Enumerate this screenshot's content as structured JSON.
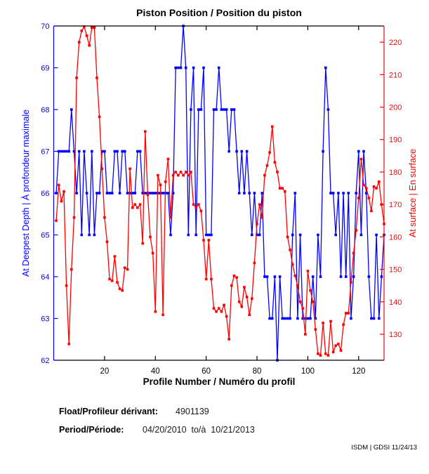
{
  "title": "Piston Position / Position du piston",
  "footer": {
    "float_label": "Float/Profileur dérivant:",
    "float_value": "4901139",
    "period_label": "Period/Période:",
    "period_value": "04/20/2010  to/à  10/21/2013",
    "credit": "ISDM | GDSI 11/24/13"
  },
  "colors": {
    "deep_blue": "#0000ff",
    "surface_red": "#ff0000",
    "axis_black": "#000000"
  },
  "chart_data": {
    "type": "line",
    "title": "Piston Position / Position du piston",
    "xlabel": "Profile Number / Numéro du profil",
    "ylabel_left": "At Deepest Depth | À profondeur maximale",
    "ylabel_right": "At surface | En surface",
    "xlim": [
      0,
      130
    ],
    "ylim_left": [
      62,
      70
    ],
    "ylim_right": [
      122,
      225
    ],
    "xticks": [
      20,
      40,
      60,
      80,
      100,
      120
    ],
    "yticks_left": [
      62,
      63,
      64,
      65,
      66,
      67,
      68,
      69,
      70
    ],
    "yticks_right": [
      130,
      140,
      150,
      160,
      170,
      180,
      190,
      200,
      210,
      220
    ],
    "x_range": [
      1,
      130
    ],
    "grid": false,
    "legend": "none",
    "marker": "square",
    "series": [
      {
        "name": "At Deepest Depth | À profondeur maximale",
        "axis": "left",
        "color": "#0000ff",
        "values": [
          66,
          67,
          67,
          67,
          67,
          67,
          68,
          67,
          66,
          67,
          65,
          67,
          66,
          65,
          67,
          65,
          66,
          66,
          67,
          67,
          66,
          66,
          66,
          67,
          67,
          66,
          67,
          67,
          66,
          66,
          66,
          66,
          67,
          67,
          66,
          66,
          66,
          66,
          66,
          66,
          66,
          66,
          66,
          66,
          66,
          65,
          66,
          69,
          69,
          69,
          70,
          69,
          65,
          68,
          69,
          65,
          68,
          68,
          69,
          65,
          65,
          65,
          68,
          68,
          69,
          68,
          68,
          68,
          67,
          68,
          68,
          67,
          66,
          67,
          66,
          67,
          66,
          65,
          66,
          65,
          65,
          66,
          64,
          64,
          63,
          63,
          64,
          62,
          64,
          63,
          63,
          63,
          63,
          65,
          66,
          63,
          65,
          63,
          63,
          63,
          63,
          64,
          63,
          65,
          64,
          67,
          69,
          68,
          66,
          66,
          65,
          66,
          64,
          66,
          64,
          66,
          63,
          64,
          66,
          67,
          65,
          67,
          66,
          64,
          63,
          63,
          65,
          63,
          64,
          65
        ]
      },
      {
        "name": "At surface | En surface",
        "axis": "right",
        "color": "#ff0000",
        "values": [
          165,
          176,
          171,
          174,
          145,
          127,
          150,
          166,
          209,
          220,
          223.5,
          224.8,
          222,
          219,
          224.5,
          224.5,
          209,
          197,
          181,
          166,
          158.5,
          147,
          146.5,
          154,
          146,
          144,
          143.5,
          150.5,
          150,
          181,
          169,
          170,
          169,
          170,
          158,
          192.5,
          173,
          160,
          155,
          137,
          179,
          176,
          136,
          177,
          184,
          166,
          179,
          180,
          179,
          180,
          179,
          180,
          179,
          180,
          170,
          169,
          170,
          168,
          159,
          147,
          159,
          147,
          138,
          137,
          138,
          137,
          139,
          135.5,
          128.5,
          145,
          148,
          147.5,
          140,
          138.5,
          144.5,
          141.5,
          136,
          141,
          152,
          164,
          170,
          166,
          179,
          182,
          186,
          194,
          183,
          180,
          175,
          175,
          174,
          160,
          156,
          151.5,
          148,
          145,
          140,
          138,
          130,
          149.5,
          143.5,
          140,
          131.5,
          124,
          123.5,
          133.5,
          124,
          123.5,
          134,
          124.5,
          126.5,
          127,
          125,
          133,
          136.5,
          136.5,
          146,
          155,
          162,
          172,
          184,
          176,
          175,
          172,
          168,
          175.5,
          175,
          177,
          170,
          164
        ]
      }
    ]
  }
}
